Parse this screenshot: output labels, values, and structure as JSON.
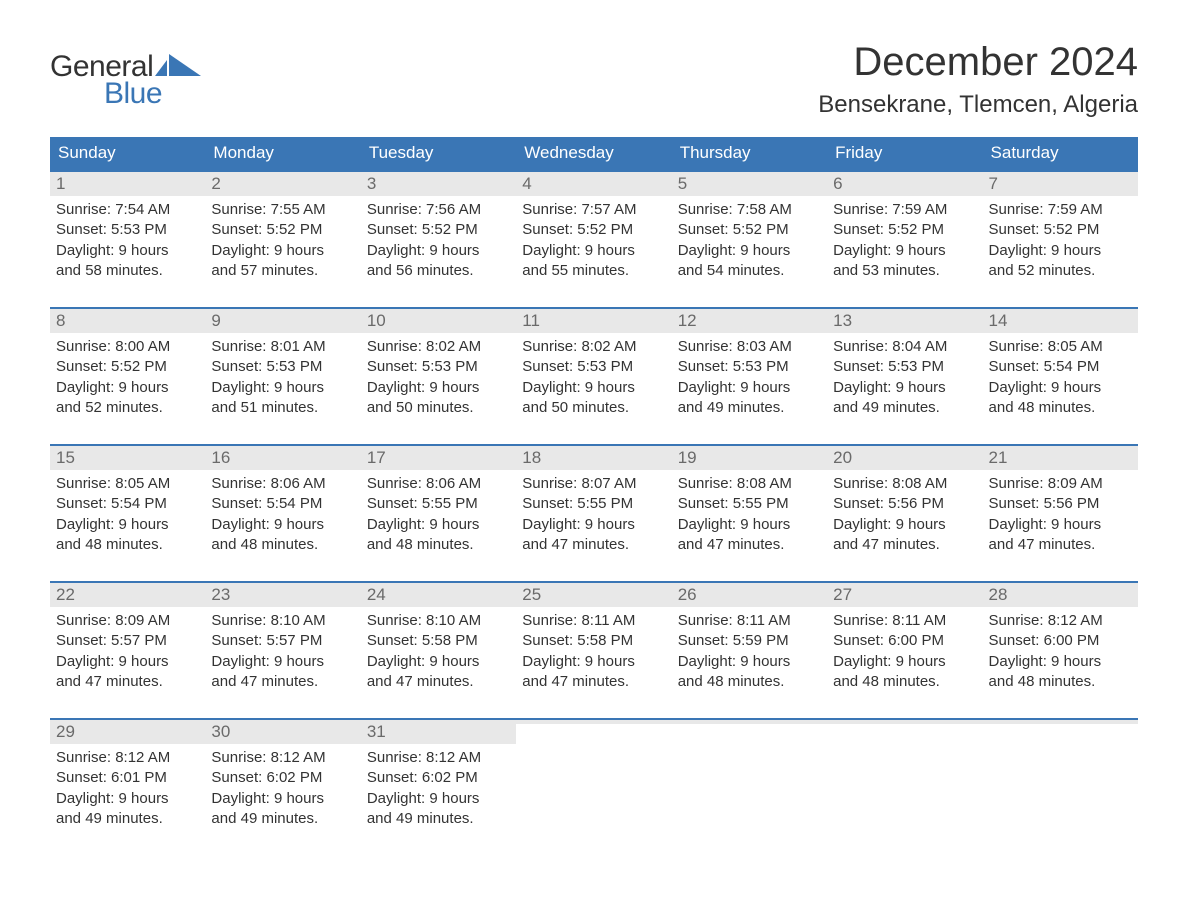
{
  "brand": {
    "general": "General",
    "blue": "Blue",
    "mark_color": "#3a76b5",
    "text_dark": "#333333"
  },
  "header": {
    "title": "December 2024",
    "location": "Bensekrane, Tlemcen, Algeria"
  },
  "colors": {
    "header_bg": "#3a76b5",
    "header_text": "#ffffff",
    "row_border": "#3a76b5",
    "daynum_bg": "#e8e8e8",
    "daynum_text": "#6a6a6a",
    "body_text": "#333333",
    "page_bg": "#ffffff"
  },
  "fonts": {
    "title_size_pt": 30,
    "subtitle_size_pt": 18,
    "weekday_size_pt": 13,
    "daynum_size_pt": 13,
    "body_size_pt": 11
  },
  "weekdays": [
    "Sunday",
    "Monday",
    "Tuesday",
    "Wednesday",
    "Thursday",
    "Friday",
    "Saturday"
  ],
  "weeks": [
    [
      {
        "n": "1",
        "sunrise": "Sunrise: 7:54 AM",
        "sunset": "Sunset: 5:53 PM",
        "d1": "Daylight: 9 hours",
        "d2": "and 58 minutes."
      },
      {
        "n": "2",
        "sunrise": "Sunrise: 7:55 AM",
        "sunset": "Sunset: 5:52 PM",
        "d1": "Daylight: 9 hours",
        "d2": "and 57 minutes."
      },
      {
        "n": "3",
        "sunrise": "Sunrise: 7:56 AM",
        "sunset": "Sunset: 5:52 PM",
        "d1": "Daylight: 9 hours",
        "d2": "and 56 minutes."
      },
      {
        "n": "4",
        "sunrise": "Sunrise: 7:57 AM",
        "sunset": "Sunset: 5:52 PM",
        "d1": "Daylight: 9 hours",
        "d2": "and 55 minutes."
      },
      {
        "n": "5",
        "sunrise": "Sunrise: 7:58 AM",
        "sunset": "Sunset: 5:52 PM",
        "d1": "Daylight: 9 hours",
        "d2": "and 54 minutes."
      },
      {
        "n": "6",
        "sunrise": "Sunrise: 7:59 AM",
        "sunset": "Sunset: 5:52 PM",
        "d1": "Daylight: 9 hours",
        "d2": "and 53 minutes."
      },
      {
        "n": "7",
        "sunrise": "Sunrise: 7:59 AM",
        "sunset": "Sunset: 5:52 PM",
        "d1": "Daylight: 9 hours",
        "d2": "and 52 minutes."
      }
    ],
    [
      {
        "n": "8",
        "sunrise": "Sunrise: 8:00 AM",
        "sunset": "Sunset: 5:52 PM",
        "d1": "Daylight: 9 hours",
        "d2": "and 52 minutes."
      },
      {
        "n": "9",
        "sunrise": "Sunrise: 8:01 AM",
        "sunset": "Sunset: 5:53 PM",
        "d1": "Daylight: 9 hours",
        "d2": "and 51 minutes."
      },
      {
        "n": "10",
        "sunrise": "Sunrise: 8:02 AM",
        "sunset": "Sunset: 5:53 PM",
        "d1": "Daylight: 9 hours",
        "d2": "and 50 minutes."
      },
      {
        "n": "11",
        "sunrise": "Sunrise: 8:02 AM",
        "sunset": "Sunset: 5:53 PM",
        "d1": "Daylight: 9 hours",
        "d2": "and 50 minutes."
      },
      {
        "n": "12",
        "sunrise": "Sunrise: 8:03 AM",
        "sunset": "Sunset: 5:53 PM",
        "d1": "Daylight: 9 hours",
        "d2": "and 49 minutes."
      },
      {
        "n": "13",
        "sunrise": "Sunrise: 8:04 AM",
        "sunset": "Sunset: 5:53 PM",
        "d1": "Daylight: 9 hours",
        "d2": "and 49 minutes."
      },
      {
        "n": "14",
        "sunrise": "Sunrise: 8:05 AM",
        "sunset": "Sunset: 5:54 PM",
        "d1": "Daylight: 9 hours",
        "d2": "and 48 minutes."
      }
    ],
    [
      {
        "n": "15",
        "sunrise": "Sunrise: 8:05 AM",
        "sunset": "Sunset: 5:54 PM",
        "d1": "Daylight: 9 hours",
        "d2": "and 48 minutes."
      },
      {
        "n": "16",
        "sunrise": "Sunrise: 8:06 AM",
        "sunset": "Sunset: 5:54 PM",
        "d1": "Daylight: 9 hours",
        "d2": "and 48 minutes."
      },
      {
        "n": "17",
        "sunrise": "Sunrise: 8:06 AM",
        "sunset": "Sunset: 5:55 PM",
        "d1": "Daylight: 9 hours",
        "d2": "and 48 minutes."
      },
      {
        "n": "18",
        "sunrise": "Sunrise: 8:07 AM",
        "sunset": "Sunset: 5:55 PM",
        "d1": "Daylight: 9 hours",
        "d2": "and 47 minutes."
      },
      {
        "n": "19",
        "sunrise": "Sunrise: 8:08 AM",
        "sunset": "Sunset: 5:55 PM",
        "d1": "Daylight: 9 hours",
        "d2": "and 47 minutes."
      },
      {
        "n": "20",
        "sunrise": "Sunrise: 8:08 AM",
        "sunset": "Sunset: 5:56 PM",
        "d1": "Daylight: 9 hours",
        "d2": "and 47 minutes."
      },
      {
        "n": "21",
        "sunrise": "Sunrise: 8:09 AM",
        "sunset": "Sunset: 5:56 PM",
        "d1": "Daylight: 9 hours",
        "d2": "and 47 minutes."
      }
    ],
    [
      {
        "n": "22",
        "sunrise": "Sunrise: 8:09 AM",
        "sunset": "Sunset: 5:57 PM",
        "d1": "Daylight: 9 hours",
        "d2": "and 47 minutes."
      },
      {
        "n": "23",
        "sunrise": "Sunrise: 8:10 AM",
        "sunset": "Sunset: 5:57 PM",
        "d1": "Daylight: 9 hours",
        "d2": "and 47 minutes."
      },
      {
        "n": "24",
        "sunrise": "Sunrise: 8:10 AM",
        "sunset": "Sunset: 5:58 PM",
        "d1": "Daylight: 9 hours",
        "d2": "and 47 minutes."
      },
      {
        "n": "25",
        "sunrise": "Sunrise: 8:11 AM",
        "sunset": "Sunset: 5:58 PM",
        "d1": "Daylight: 9 hours",
        "d2": "and 47 minutes."
      },
      {
        "n": "26",
        "sunrise": "Sunrise: 8:11 AM",
        "sunset": "Sunset: 5:59 PM",
        "d1": "Daylight: 9 hours",
        "d2": "and 48 minutes."
      },
      {
        "n": "27",
        "sunrise": "Sunrise: 8:11 AM",
        "sunset": "Sunset: 6:00 PM",
        "d1": "Daylight: 9 hours",
        "d2": "and 48 minutes."
      },
      {
        "n": "28",
        "sunrise": "Sunrise: 8:12 AM",
        "sunset": "Sunset: 6:00 PM",
        "d1": "Daylight: 9 hours",
        "d2": "and 48 minutes."
      }
    ],
    [
      {
        "n": "29",
        "sunrise": "Sunrise: 8:12 AM",
        "sunset": "Sunset: 6:01 PM",
        "d1": "Daylight: 9 hours",
        "d2": "and 49 minutes."
      },
      {
        "n": "30",
        "sunrise": "Sunrise: 8:12 AM",
        "sunset": "Sunset: 6:02 PM",
        "d1": "Daylight: 9 hours",
        "d2": "and 49 minutes."
      },
      {
        "n": "31",
        "sunrise": "Sunrise: 8:12 AM",
        "sunset": "Sunset: 6:02 PM",
        "d1": "Daylight: 9 hours",
        "d2": "and 49 minutes."
      },
      {
        "empty": true
      },
      {
        "empty": true
      },
      {
        "empty": true
      },
      {
        "empty": true
      }
    ]
  ]
}
